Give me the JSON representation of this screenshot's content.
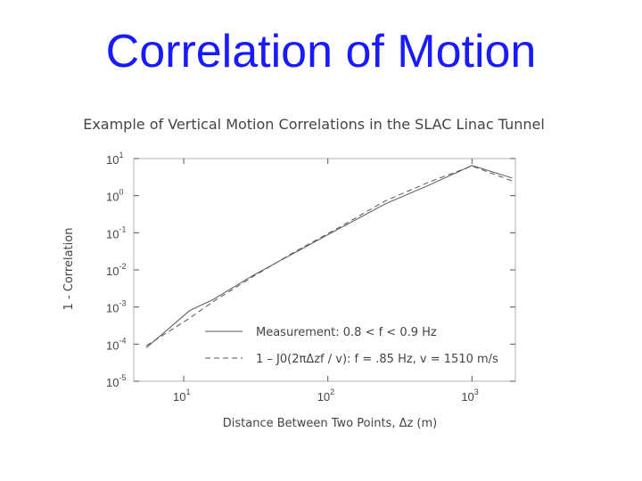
{
  "slide": {
    "title": "Correlation of Motion"
  },
  "colors": {
    "title": "#1a1aff",
    "ink": "#444444",
    "frame": "#b0b0b0",
    "series": "#555555"
  },
  "chart_data": {
    "type": "line",
    "title": "Example of Vertical Motion Correlations in the SLAC Linac Tunnel",
    "xlabel": "Distance Between Two Points, Δz (m)",
    "ylabel": "1 - Correlation",
    "x_scale": "log",
    "y_scale": "log",
    "xlim": [
      4.5,
      2000
    ],
    "ylim": [
      1e-05,
      10
    ],
    "x_ticks": [
      {
        "base": "10",
        "exp": "1",
        "value": 10
      },
      {
        "base": "10",
        "exp": "2",
        "value": 100
      },
      {
        "base": "10",
        "exp": "3",
        "value": 1000
      }
    ],
    "y_ticks": [
      {
        "base": "10",
        "exp": "1",
        "value": 10
      },
      {
        "base": "10",
        "exp": "0",
        "value": 1
      },
      {
        "base": "10",
        "exp": "-1",
        "value": 0.1
      },
      {
        "base": "10",
        "exp": "-2",
        "value": 0.01
      },
      {
        "base": "10",
        "exp": "-3",
        "value": 0.001
      },
      {
        "base": "10",
        "exp": "-4",
        "value": 0.0001
      },
      {
        "base": "10",
        "exp": "-5",
        "value": 1e-05
      }
    ],
    "grid": false,
    "legend_position": "bottom-right",
    "series": [
      {
        "name": "Measurement:  0.8 <  f < 0.9 Hz",
        "style": "solid",
        "x": [
          5.5,
          11,
          16,
          30,
          60,
          120,
          250,
          500,
          1000,
          1900
        ],
        "y": [
          8e-05,
          0.0008,
          0.0016,
          0.007,
          0.03,
          0.13,
          0.6,
          1.9,
          6.5,
          3
        ]
      },
      {
        "name": "1 – J0(2πΔzf / v):  f = .85 Hz, v = 1510 m/s",
        "style": "dashed",
        "x": [
          5.5,
          11,
          16,
          30,
          60,
          120,
          250,
          500,
          1000,
          1900
        ],
        "y": [
          9e-05,
          0.0005,
          0.0014,
          0.0065,
          0.032,
          0.14,
          0.72,
          2.3,
          6.3,
          2.5
        ]
      }
    ]
  }
}
